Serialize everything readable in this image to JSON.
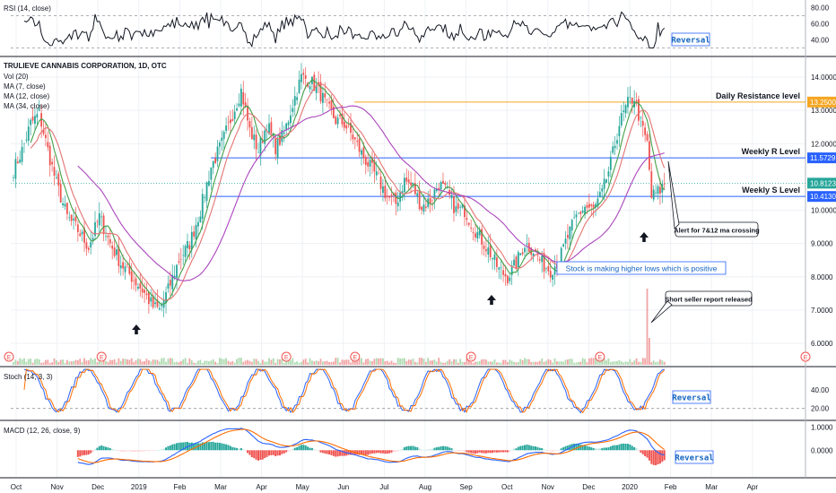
{
  "chart_data": {
    "type": "candlestick",
    "symbol_title": "TRULIEVE CANNABIS CORPORATION, 1D, OTC",
    "main_legend": [
      "Vol (20)",
      "MA (7, close)",
      "MA (12, close)",
      "MA (34, close)"
    ],
    "x_months": [
      "Oct",
      "Nov",
      "Dec",
      "2019",
      "Feb",
      "Mar",
      "Apr",
      "May",
      "Jun",
      "Jul",
      "Aug",
      "Sep",
      "Oct",
      "Nov",
      "Dec",
      "2020",
      "Feb",
      "Mar",
      "Apr"
    ],
    "price_ticks": [
      "14.0000",
      "13.0000",
      "12.0000",
      "10.0000",
      "9.0000",
      "8.0000",
      "7.0000",
      "6.0000"
    ],
    "price_ylim": [
      5.5,
      14.6
    ],
    "price_marks": [
      {
        "value": 13.25,
        "label": "13.2500",
        "color": "#f5a623"
      },
      {
        "value": 11.5729,
        "label": "11.5729",
        "color": "#2962ff"
      },
      {
        "value": 10.8123,
        "label": "10.8123",
        "color": "#26a69a"
      },
      {
        "value": 10.413,
        "label": "10.4130",
        "color": "#2962ff"
      }
    ],
    "levels": [
      {
        "name": "Daily Resistance level",
        "value": 13.25,
        "color": "#f5a623"
      },
      {
        "name": "Weekly R Level",
        "value": 11.5729,
        "color": "#2962ff"
      },
      {
        "name": "Weekly S Level",
        "value": 10.413,
        "color": "#2962ff"
      }
    ],
    "close_points": [
      [
        0,
        11.2
      ],
      [
        4,
        11.8
      ],
      [
        8,
        12.6
      ],
      [
        12,
        12.9
      ],
      [
        16,
        11.8
      ],
      [
        20,
        10.8
      ],
      [
        25,
        9.8
      ],
      [
        30,
        9.4
      ],
      [
        35,
        8.9
      ],
      [
        40,
        9.8
      ],
      [
        45,
        9.0
      ],
      [
        50,
        8.4
      ],
      [
        55,
        8.0
      ],
      [
        60,
        7.6
      ],
      [
        65,
        7.1
      ],
      [
        68,
        7.0
      ],
      [
        72,
        7.6
      ],
      [
        77,
        8.5
      ],
      [
        82,
        9.0
      ],
      [
        87,
        10.0
      ],
      [
        92,
        11.3
      ],
      [
        97,
        12.0
      ],
      [
        102,
        12.9
      ],
      [
        106,
        13.6
      ],
      [
        110,
        12.4
      ],
      [
        114,
        11.8
      ],
      [
        118,
        12.6
      ],
      [
        122,
        11.9
      ],
      [
        126,
        12.3
      ],
      [
        130,
        13.2
      ],
      [
        134,
        14.0
      ],
      [
        138,
        13.9
      ],
      [
        142,
        13.6
      ],
      [
        146,
        13.1
      ],
      [
        150,
        12.7
      ],
      [
        154,
        12.6
      ],
      [
        158,
        12.2
      ],
      [
        162,
        11.7
      ],
      [
        166,
        11.3
      ],
      [
        170,
        10.9
      ],
      [
        174,
        10.4
      ],
      [
        178,
        10.2
      ],
      [
        182,
        10.9
      ],
      [
        186,
        10.7
      ],
      [
        190,
        10.1
      ],
      [
        194,
        10.3
      ],
      [
        198,
        10.8
      ],
      [
        202,
        10.5
      ],
      [
        206,
        10.0
      ],
      [
        210,
        10.0
      ],
      [
        214,
        9.5
      ],
      [
        218,
        9.1
      ],
      [
        222,
        8.7
      ],
      [
        226,
        8.2
      ],
      [
        230,
        8.0
      ],
      [
        234,
        8.4
      ],
      [
        238,
        9.0
      ],
      [
        242,
        8.8
      ],
      [
        246,
        8.4
      ],
      [
        250,
        8.2
      ],
      [
        254,
        8.5
      ],
      [
        258,
        9.2
      ],
      [
        262,
        9.8
      ],
      [
        266,
        10.1
      ],
      [
        270,
        10.0
      ],
      [
        274,
        10.5
      ],
      [
        278,
        11.4
      ],
      [
        282,
        12.6
      ],
      [
        286,
        13.2
      ],
      [
        289,
        13.4
      ],
      [
        292,
        12.6
      ],
      [
        295,
        12.0
      ],
      [
        297,
        10.4
      ],
      [
        299,
        10.5
      ],
      [
        301,
        10.6
      ],
      [
        303,
        10.8
      ]
    ],
    "annotations": [
      {
        "text": "Stock is making higher lows which is positive"
      },
      {
        "text": "Alert for 7&12 ma crossing"
      },
      {
        "text": "Short seller report released"
      }
    ],
    "panels": {
      "rsi": {
        "title": "RSI (14, close)",
        "ticks": [
          "80.00",
          "60.00",
          "40.00"
        ],
        "ylim": [
          25,
          85
        ],
        "guides": [
          70,
          30
        ]
      },
      "stoch": {
        "title": "Stoch (14, 3, 3)",
        "ticks": [
          "40.00",
          "20.00"
        ],
        "ylim": [
          12,
          60
        ],
        "guides": [
          20
        ]
      },
      "macd": {
        "title": "MACD (12, 26, close, 9)",
        "ticks": [
          "1.0000",
          "0.0000"
        ],
        "ylim": [
          -1.0,
          1.1
        ]
      }
    },
    "reversal_label": "Reversal"
  }
}
